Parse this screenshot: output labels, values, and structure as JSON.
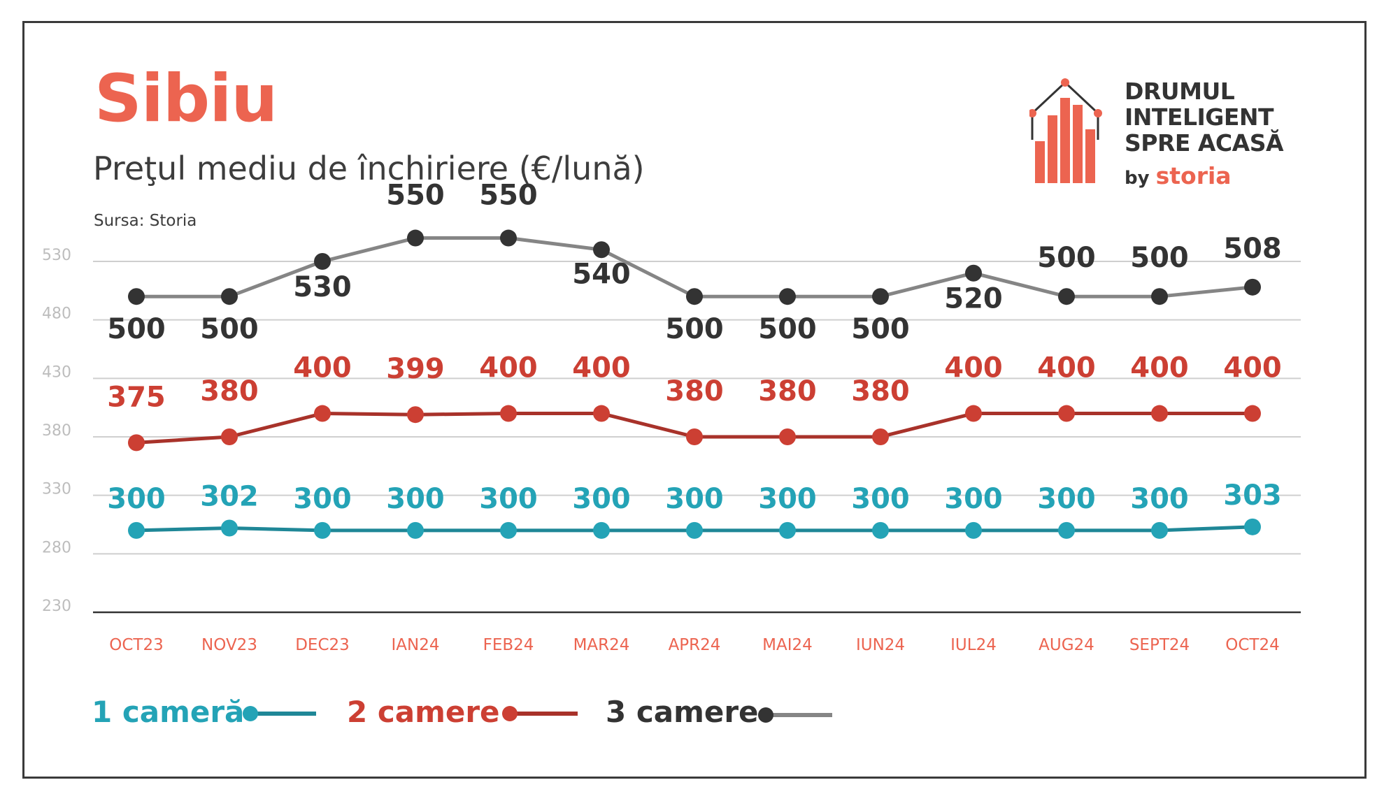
{
  "header": {
    "title": "Sibiu",
    "subtitle": "Preţul mediu de închiriere (€/lună)",
    "source": "Sursa: Storia"
  },
  "logo": {
    "line1": "DRUMUL",
    "line2": "INTELIGENT",
    "line3": "SPRE ACASĂ",
    "by": "by",
    "brand": "storia"
  },
  "colors": {
    "accent": "#ec6450",
    "one_room": "#24a3b6",
    "one_room_line": "#1f8797",
    "two_rooms": "#cc3f33",
    "two_rooms_line": "#a8322a",
    "three_rooms": "#333333",
    "three_rooms_line": "#858585",
    "grid": "#cfcfcf",
    "axis_tick": "#ec6450",
    "ytick": "#bdbdbd"
  },
  "chart_data": {
    "type": "line",
    "categories": [
      "OCT23",
      "NOV23",
      "DEC23",
      "IAN24",
      "FEB24",
      "MAR24",
      "APR24",
      "MAI24",
      "IUN24",
      "IUL24",
      "AUG24",
      "SEPT24",
      "OCT24"
    ],
    "yticks": [
      230,
      280,
      330,
      380,
      430,
      480,
      530
    ],
    "ylim": [
      230,
      560
    ],
    "grid": true,
    "legend": "bottom-left",
    "series": [
      {
        "name": "1 cameră",
        "key": "one_room",
        "values": [
          300,
          302,
          300,
          300,
          300,
          300,
          300,
          300,
          300,
          300,
          300,
          300,
          303
        ]
      },
      {
        "name": "2 camere",
        "key": "two_rooms",
        "values": [
          375,
          380,
          400,
          399,
          400,
          400,
          380,
          380,
          380,
          400,
          400,
          400,
          400
        ]
      },
      {
        "name": "3 camere",
        "key": "three_rooms",
        "values": [
          500,
          500,
          530,
          550,
          550,
          540,
          500,
          500,
          500,
          520,
          500,
          500,
          508
        ]
      }
    ]
  },
  "legend": {
    "one_room": "1 cameră",
    "two_rooms": "2 camere",
    "three_rooms": "3 camere"
  }
}
